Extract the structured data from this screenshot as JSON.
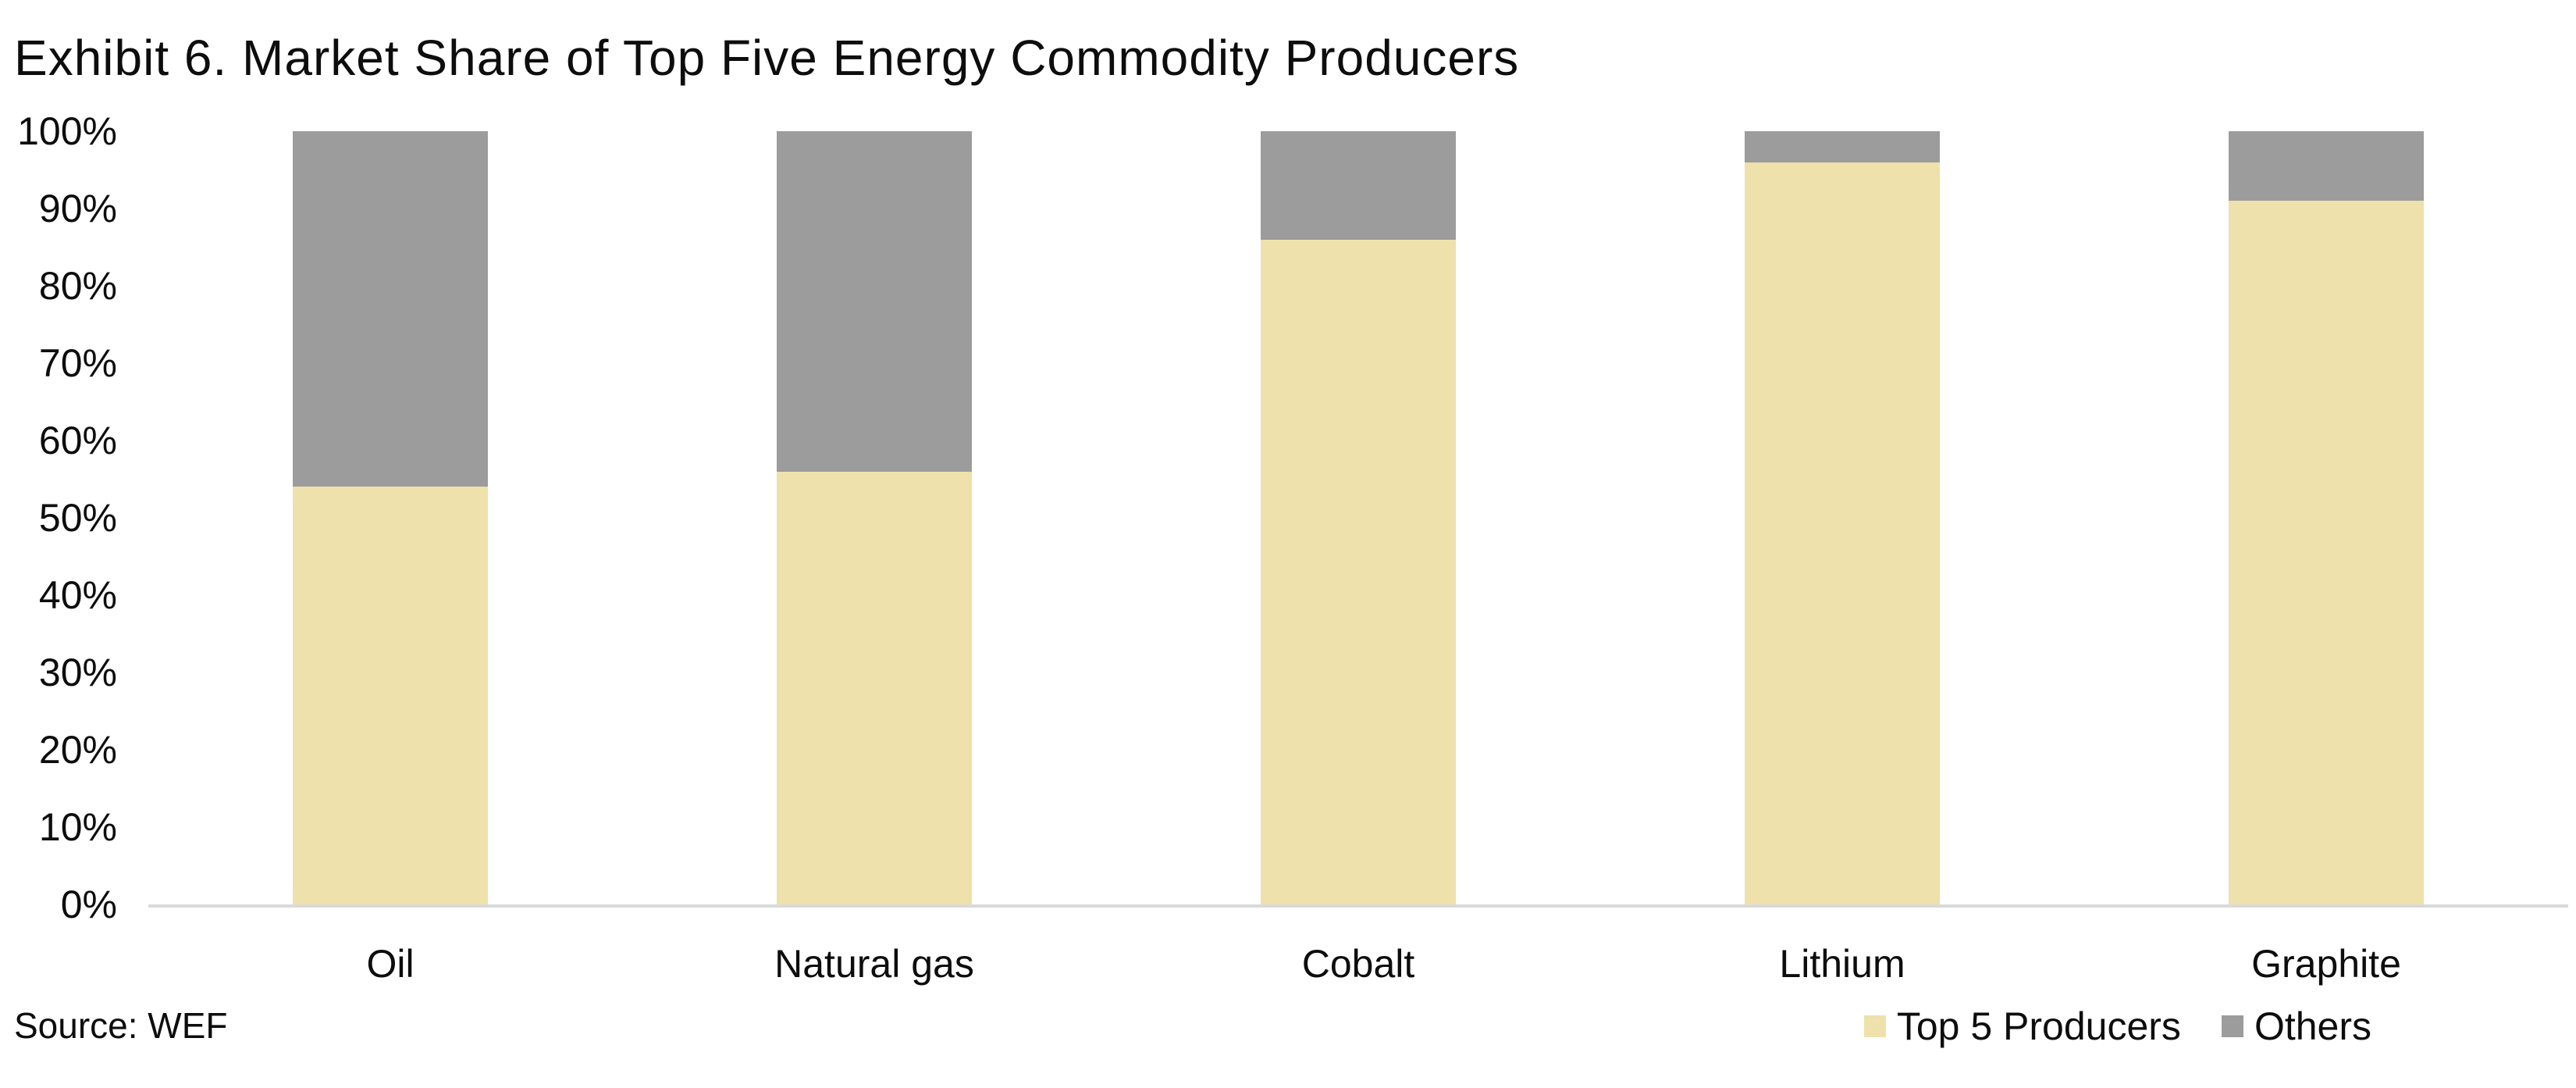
{
  "title": "Exhibit 6. Market Share of Top Five Energy Commodity Producers",
  "source_note": "Source: WEF",
  "colors": {
    "top5_fill": "#eee1ab",
    "others_fill": "#9c9c9c",
    "axis_line": "#d9d9d9",
    "text": "#0d0d0d",
    "background": "#ffffff"
  },
  "y_axis": {
    "tick_labels": [
      "0%",
      "10%",
      "20%",
      "30%",
      "40%",
      "50%",
      "60%",
      "70%",
      "80%",
      "90%",
      "100%"
    ]
  },
  "legend": {
    "position": "bottom-right",
    "items": [
      {
        "label": "Top 5 Producers",
        "color": "#eee1ab"
      },
      {
        "label": "Others",
        "color": "#9c9c9c"
      }
    ]
  },
  "chart_data": {
    "type": "bar",
    "stacked": true,
    "title": "Exhibit 6. Market Share of Top Five Energy Commodity Producers",
    "xlabel": "",
    "ylabel": "",
    "ylim": [
      0,
      100
    ],
    "grid": false,
    "legend_position": "bottom-right",
    "categories": [
      "Oil",
      "Natural gas",
      "Cobalt",
      "Lithium",
      "Graphite"
    ],
    "series": [
      {
        "name": "Top 5 Producers",
        "color": "#eee1ab",
        "values": [
          54,
          56,
          86,
          96,
          91
        ]
      },
      {
        "name": "Others",
        "color": "#9c9c9c",
        "values": [
          46,
          44,
          14,
          4,
          9
        ]
      }
    ]
  }
}
